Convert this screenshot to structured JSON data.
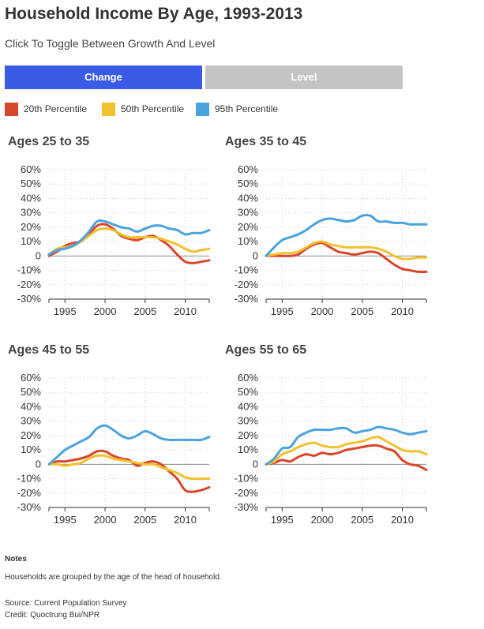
{
  "title": "Household Income By Age, 1993-2013",
  "subtitle": "Click To Toggle Between Growth And Level",
  "toggle": {
    "change_label": "Change",
    "level_label": "Level",
    "active_color": "#3b5be6",
    "inactive_color": "#c4c4c4"
  },
  "legend": [
    {
      "label": "20th Percentile",
      "color": "#d9472b"
    },
    {
      "label": "50th Percentile",
      "color": "#f2c12e"
    },
    {
      "label": "95th Percentile",
      "color": "#4aa3df"
    }
  ],
  "notes": {
    "heading": "Notes",
    "text": "Households are grouped by the age of the head of household.",
    "source": "Source: Current Population Survey",
    "credit": "Credit: Quoctrung Bui/NPR"
  },
  "chart_data": [
    {
      "type": "line",
      "title": "Ages 25 to 35",
      "x": [
        1993,
        1994,
        1995,
        1996,
        1997,
        1998,
        1999,
        2000,
        2001,
        2002,
        2003,
        2004,
        2005,
        2006,
        2007,
        2008,
        2009,
        2010,
        2011,
        2012,
        2013
      ],
      "xticks": [
        1995,
        2000,
        2005,
        2010
      ],
      "ylim": [
        -30,
        60
      ],
      "yticks": [
        -30,
        -20,
        -10,
        0,
        10,
        20,
        30,
        40,
        50,
        60
      ],
      "ytick_labels": [
        "-30%",
        "-20%",
        "-10%",
        "0",
        "10%",
        "20%",
        "30%",
        "40%",
        "50%",
        "60%"
      ],
      "series": [
        {
          "name": "20th Percentile",
          "values": [
            0,
            3,
            7,
            9,
            10,
            15,
            21,
            22,
            19,
            14,
            12,
            11,
            13,
            14,
            11,
            7,
            1,
            -4,
            -5,
            -4,
            -3
          ]
        },
        {
          "name": "50th Percentile",
          "values": [
            1,
            5,
            6,
            7,
            10,
            14,
            18,
            19,
            18,
            15,
            13,
            13,
            13,
            13,
            12,
            10,
            8,
            5,
            3,
            4,
            5
          ]
        },
        {
          "name": "95th Percentile",
          "values": [
            1,
            4,
            5,
            7,
            11,
            17,
            24,
            24,
            22,
            20,
            19,
            17,
            19,
            21,
            21,
            19,
            18,
            15,
            16,
            16,
            18
          ]
        }
      ]
    },
    {
      "type": "line",
      "title": "Ages 35 to 45",
      "x": [
        1993,
        1994,
        1995,
        1996,
        1997,
        1998,
        1999,
        2000,
        2001,
        2002,
        2003,
        2004,
        2005,
        2006,
        2007,
        2008,
        2009,
        2010,
        2011,
        2012,
        2013
      ],
      "xticks": [
        1995,
        2000,
        2005,
        2010
      ],
      "ylim": [
        -30,
        60
      ],
      "yticks": [
        -30,
        -20,
        -10,
        0,
        10,
        20,
        30,
        40,
        50,
        60
      ],
      "ytick_labels": [
        "-30%",
        "-20%",
        "-10%",
        "0",
        "10%",
        "20%",
        "30%",
        "40%",
        "50%",
        "60%"
      ],
      "series": [
        {
          "name": "20th Percentile",
          "values": [
            0,
            0,
            0,
            0,
            1,
            5,
            8,
            9,
            6,
            3,
            2,
            1,
            2,
            3,
            2,
            -2,
            -6,
            -9,
            -10,
            -11,
            -11
          ]
        },
        {
          "name": "50th Percentile",
          "values": [
            0,
            1,
            2,
            2,
            3,
            6,
            9,
            10,
            8,
            7,
            6,
            6,
            6,
            6,
            5,
            3,
            0,
            -2,
            -2,
            -1,
            -1
          ]
        },
        {
          "name": "95th Percentile",
          "values": [
            0,
            6,
            11,
            13,
            15,
            18,
            22,
            25,
            26,
            25,
            24,
            25,
            28,
            28,
            24,
            24,
            23,
            23,
            22,
            22,
            22
          ]
        }
      ]
    },
    {
      "type": "line",
      "title": "Ages 45 to 55",
      "x": [
        1993,
        1994,
        1995,
        1996,
        1997,
        1998,
        1999,
        2000,
        2001,
        2002,
        2003,
        2004,
        2005,
        2006,
        2007,
        2008,
        2009,
        2010,
        2011,
        2012,
        2013
      ],
      "xticks": [
        1995,
        2000,
        2005,
        2010
      ],
      "ylim": [
        -30,
        60
      ],
      "yticks": [
        -30,
        -20,
        -10,
        0,
        10,
        20,
        30,
        40,
        50,
        60
      ],
      "ytick_labels": [
        "-30%",
        "-20%",
        "-10%",
        "0",
        "10%",
        "20%",
        "30%",
        "40%",
        "50%",
        "60%"
      ],
      "series": [
        {
          "name": "20th Percentile",
          "values": [
            0,
            2,
            2,
            3,
            4,
            6,
            9,
            9,
            6,
            4,
            3,
            -1,
            1,
            2,
            0,
            -5,
            -10,
            -18,
            -19,
            -18,
            -16
          ]
        },
        {
          "name": "50th Percentile",
          "values": [
            0,
            0,
            -1,
            0,
            1,
            4,
            6,
            6,
            4,
            3,
            2,
            1,
            0,
            0,
            -2,
            -4,
            -6,
            -9,
            -10,
            -10,
            -10
          ]
        },
        {
          "name": "95th Percentile",
          "values": [
            0,
            5,
            10,
            13,
            16,
            19,
            25,
            27,
            24,
            20,
            18,
            20,
            23,
            21,
            18,
            17,
            17,
            17,
            17,
            17,
            19
          ]
        }
      ]
    },
    {
      "type": "line",
      "title": "Ages 55 to 65",
      "x": [
        1993,
        1994,
        1995,
        1996,
        1997,
        1998,
        1999,
        2000,
        2001,
        2002,
        2003,
        2004,
        2005,
        2006,
        2007,
        2008,
        2009,
        2010,
        2011,
        2012,
        2013
      ],
      "xticks": [
        1995,
        2000,
        2005,
        2010
      ],
      "ylim": [
        -30,
        60
      ],
      "yticks": [
        -30,
        -20,
        -10,
        0,
        10,
        20,
        30,
        40,
        50,
        60
      ],
      "ytick_labels": [
        "-30%",
        "-20%",
        "-10%",
        "0",
        "10%",
        "20%",
        "30%",
        "40%",
        "50%",
        "60%"
      ],
      "series": [
        {
          "name": "20th Percentile",
          "values": [
            0,
            1,
            3,
            2,
            5,
            7,
            6,
            8,
            7,
            8,
            10,
            11,
            12,
            13,
            13,
            11,
            9,
            3,
            0,
            -1,
            -4
          ]
        },
        {
          "name": "50th Percentile",
          "values": [
            0,
            2,
            7,
            9,
            12,
            14,
            15,
            13,
            12,
            12,
            14,
            15,
            16,
            18,
            19,
            16,
            13,
            10,
            9,
            9,
            7
          ]
        },
        {
          "name": "95th Percentile",
          "values": [
            0,
            4,
            11,
            12,
            19,
            22,
            24,
            24,
            24,
            25,
            25,
            22,
            23,
            24,
            26,
            25,
            24,
            22,
            21,
            22,
            23
          ]
        }
      ]
    }
  ]
}
